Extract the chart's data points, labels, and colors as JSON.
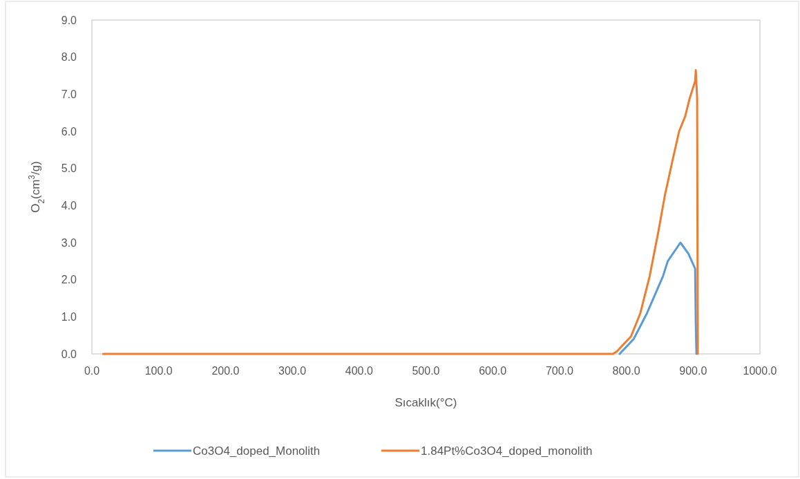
{
  "chart_data": {
    "type": "line",
    "xlabel": "Sıcaklık(°C)",
    "ylabel": "O$_{2}$(cm$^{3}$/g)",
    "xlim": [
      0,
      1000
    ],
    "ylim": [
      0,
      9
    ],
    "xticks": [
      {
        "value": 0,
        "label": "0.0"
      },
      {
        "value": 100,
        "label": "100.0"
      },
      {
        "value": 200,
        "label": "200.0"
      },
      {
        "value": 300,
        "label": "300.0"
      },
      {
        "value": 400,
        "label": "400.0"
      },
      {
        "value": 500,
        "label": "500.0"
      },
      {
        "value": 600,
        "label": "600.0"
      },
      {
        "value": 700,
        "label": "700.0"
      },
      {
        "value": 800,
        "label": "800.0"
      },
      {
        "value": 900,
        "label": "900.0"
      },
      {
        "value": 1000,
        "label": "1000.0"
      }
    ],
    "yticks": [
      {
        "value": 0,
        "label": "0.0"
      },
      {
        "value": 1,
        "label": "1.0"
      },
      {
        "value": 2,
        "label": "2.0"
      },
      {
        "value": 3,
        "label": "3.0"
      },
      {
        "value": 4,
        "label": "4.0"
      },
      {
        "value": 5,
        "label": "5.0"
      },
      {
        "value": 6,
        "label": "6.0"
      },
      {
        "value": 7,
        "label": "7.0"
      },
      {
        "value": 8,
        "label": "8.0"
      },
      {
        "value": 9,
        "label": "9.0"
      }
    ],
    "grid": false,
    "legend": "bottom",
    "series": [
      {
        "name": "Co3O4_doped_Monolith",
        "color": "#5b9bd5",
        "x": [
          790,
          811,
          831,
          855,
          862,
          881,
          893,
          903,
          904,
          905
        ],
        "values": [
          0,
          0.4,
          1.1,
          2.1,
          2.5,
          3.0,
          2.7,
          2.3,
          0.8,
          0
        ]
      },
      {
        "name": "1.84Pt%Co3O4_doped_monolith",
        "color": "#ed7d31",
        "x": [
          17,
          780,
          786,
          807,
          821,
          835,
          848,
          858,
          869,
          879,
          888,
          895,
          903,
          904,
          906,
          907
        ],
        "values": [
          0,
          0,
          0.07,
          0.47,
          1.1,
          2.1,
          3.3,
          4.3,
          5.2,
          6.0,
          6.4,
          6.9,
          7.35,
          7.65,
          6.9,
          0
        ]
      }
    ]
  }
}
